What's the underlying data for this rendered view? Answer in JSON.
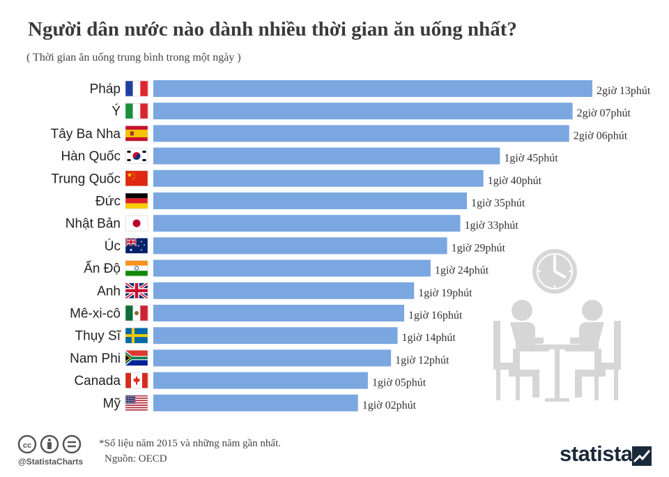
{
  "chart_data": {
    "type": "bar",
    "orientation": "horizontal",
    "title": "Người dân nước nào dành nhiều thời gian ăn uống nhất?",
    "subtitle": "( Thời gian ăn uống trung bình trong một ngày )",
    "categories": [
      "Pháp",
      "Ý",
      "Tây Ba Nha",
      "Hàn Quốc",
      "Trung Quốc",
      "Đức",
      "Nhật Bản",
      "Úc",
      "Ấn Độ",
      "Anh",
      "Mê-xi-cô",
      "Thụy Sĩ",
      "Nam Phi",
      "Canada",
      "Mỹ"
    ],
    "values": [
      133,
      127,
      126,
      105,
      100,
      95,
      93,
      89,
      84,
      79,
      76,
      74,
      72,
      65,
      62
    ],
    "value_labels": [
      "2giờ 13phút",
      "2giờ 07phút",
      "2giờ 06phút",
      "1giờ 45phút",
      "1giờ 40phút",
      "1giờ 35phút",
      "1giờ 33phút",
      "1giờ 29phút",
      "1giờ 24phút",
      "1giờ 19phút",
      "1giờ 16phút",
      "1giờ 14phút",
      "1giờ 12phút",
      "1giờ 05phút",
      "1giờ 02phút"
    ],
    "flags": [
      "fr",
      "it",
      "es",
      "kr",
      "cn",
      "de",
      "jp",
      "au",
      "in",
      "gb",
      "mx",
      "se",
      "za",
      "ca",
      "us"
    ],
    "unit": "minutes",
    "xlim": [
      0,
      133
    ],
    "bar_color": "#7ba7e0",
    "grid": false,
    "legend": "none"
  },
  "footnote": "*Số liệu năm 2015 và những năm gần nhất.",
  "source": "Nguồn: OECD",
  "license_icons": [
    "cc-icon",
    "attribution-icon",
    "no-derivatives-icon"
  ],
  "handle": "@StatistaCharts",
  "brand": "statista",
  "colors": {
    "title": "#3a3a3a",
    "illustration": "#d6d6d6",
    "brand": "#1b2a3a"
  }
}
